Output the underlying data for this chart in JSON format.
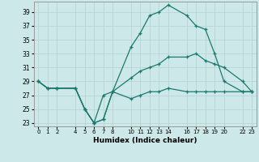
{
  "xlabel": "Humidex (Indice chaleur)",
  "background_color": "#cde8e8",
  "grid_color": "#b8d4d4",
  "line_color": "#1a7a6e",
  "ylim": [
    22.5,
    40.5
  ],
  "yticks": [
    23,
    25,
    27,
    29,
    31,
    33,
    35,
    37,
    39
  ],
  "xlim": [
    -0.5,
    23.5
  ],
  "x_ticks": [
    0,
    1,
    2,
    4,
    5,
    6,
    7,
    8,
    10,
    11,
    12,
    13,
    14,
    16,
    17,
    18,
    19,
    20,
    22,
    23
  ],
  "line1_x": [
    0,
    1,
    2,
    4,
    5,
    6,
    7,
    8,
    10,
    11,
    12,
    13,
    14,
    16,
    17,
    18,
    19,
    20,
    22,
    23
  ],
  "line1_y": [
    29,
    28,
    28,
    28,
    25,
    23,
    27,
    27.5,
    34,
    36,
    38.5,
    39,
    40,
    38.5,
    37,
    36.5,
    33,
    29,
    27.5,
    27.5
  ],
  "line2_x": [
    0,
    1,
    2,
    4,
    5,
    6,
    7,
    8,
    10,
    11,
    12,
    13,
    14,
    16,
    17,
    18,
    19,
    20,
    22,
    23
  ],
  "line2_y": [
    29,
    28,
    28,
    28,
    25,
    23,
    23.5,
    27.5,
    29.5,
    30.5,
    31,
    31.5,
    32.5,
    32.5,
    33,
    32,
    31.5,
    31,
    29,
    27.5
  ],
  "line3_x": [
    0,
    1,
    2,
    4,
    5,
    6,
    7,
    8,
    10,
    11,
    12,
    13,
    14,
    16,
    17,
    18,
    19,
    20,
    22,
    23
  ],
  "line3_y": [
    29,
    28,
    28,
    28,
    25,
    23,
    23.5,
    27.5,
    26.5,
    27,
    27.5,
    27.5,
    28,
    27.5,
    27.5,
    27.5,
    27.5,
    27.5,
    27.5,
    27.5
  ]
}
